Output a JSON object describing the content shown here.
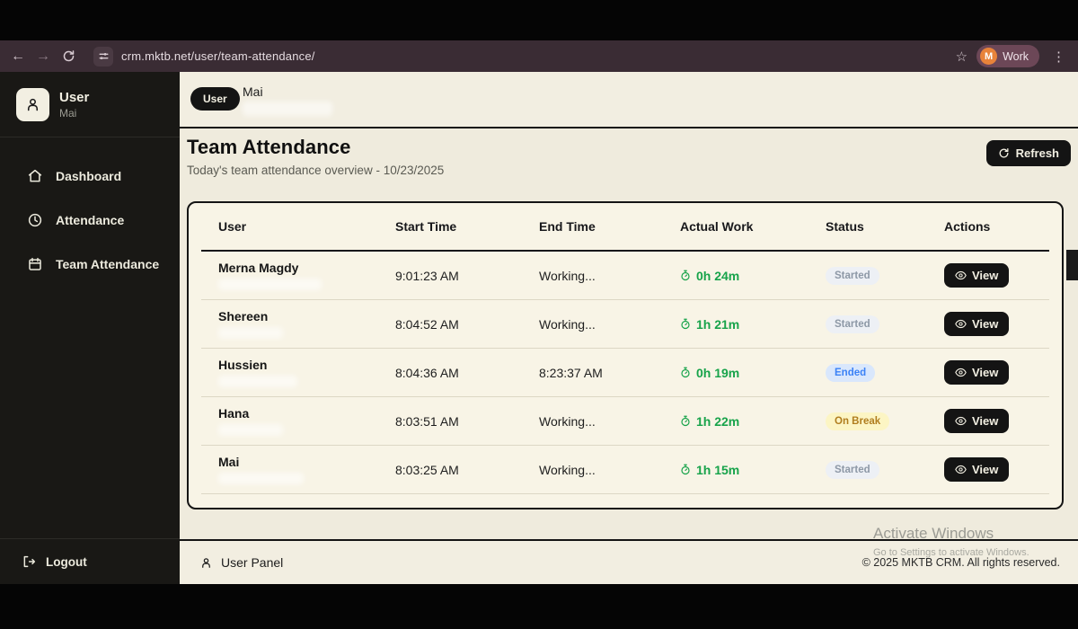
{
  "browser": {
    "back_glyph": "←",
    "forward_glyph": "→",
    "url": "crm.mktb.net/user/team-attendance/",
    "star_glyph": "☆",
    "menu_glyph": "⋮",
    "profile": {
      "initial": "M",
      "label": "Work"
    }
  },
  "sidebar": {
    "user_title": "User",
    "user_name": "Mai",
    "items": [
      {
        "label": "Dashboard",
        "icon": "home-icon"
      },
      {
        "label": "Attendance",
        "icon": "clock-icon"
      },
      {
        "label": "Team Attendance",
        "icon": "calendar-icon"
      }
    ],
    "logout_label": "Logout"
  },
  "topbar": {
    "badge": "User",
    "name": "Mai"
  },
  "page": {
    "title": "Team Attendance",
    "subtitle": "Today's team attendance overview - 10/23/2025",
    "refresh_label": "Refresh"
  },
  "table": {
    "columns": [
      "User",
      "Start Time",
      "End Time",
      "Actual Work",
      "Status",
      "Actions"
    ],
    "rows": [
      {
        "user": "Merna Magdy",
        "start": "9:01:23 AM",
        "end": "Working...",
        "work": "0h 24m",
        "status": "Started",
        "status_type": "started",
        "action": "View"
      },
      {
        "user": "Shereen",
        "start": "8:04:52 AM",
        "end": "Working...",
        "work": "1h 21m",
        "status": "Started",
        "status_type": "started",
        "action": "View"
      },
      {
        "user": "Hussien",
        "start": "8:04:36 AM",
        "end": "8:23:37 AM",
        "work": "0h 19m",
        "status": "Ended",
        "status_type": "ended",
        "action": "View"
      },
      {
        "user": "Hana",
        "start": "8:03:51 AM",
        "end": "Working...",
        "work": "1h 22m",
        "status": "On Break",
        "status_type": "break",
        "action": "View"
      },
      {
        "user": "Mai",
        "start": "8:03:25 AM",
        "end": "Working...",
        "work": "1h 15m",
        "status": "Started",
        "status_type": "started",
        "action": "View"
      }
    ]
  },
  "footer": {
    "panel_label": "User Panel",
    "copyright": "© 2025 MKTB CRM. All rights reserved."
  },
  "watermark": {
    "line1": "Activate Windows",
    "line2": "Go to Settings to activate Windows."
  },
  "colors": {
    "accent_dark": "#141414",
    "content_bg": "#efebdd",
    "card_bg": "#f8f4e6",
    "work_green": "#17a34a",
    "badge_started_bg": "#edf0f5",
    "badge_ended_bg": "#d9e7fc",
    "badge_break_bg": "#fcf5c4",
    "browser_bar_bg": "#3a2c34",
    "profile_avatar_bg": "#e8833a"
  }
}
